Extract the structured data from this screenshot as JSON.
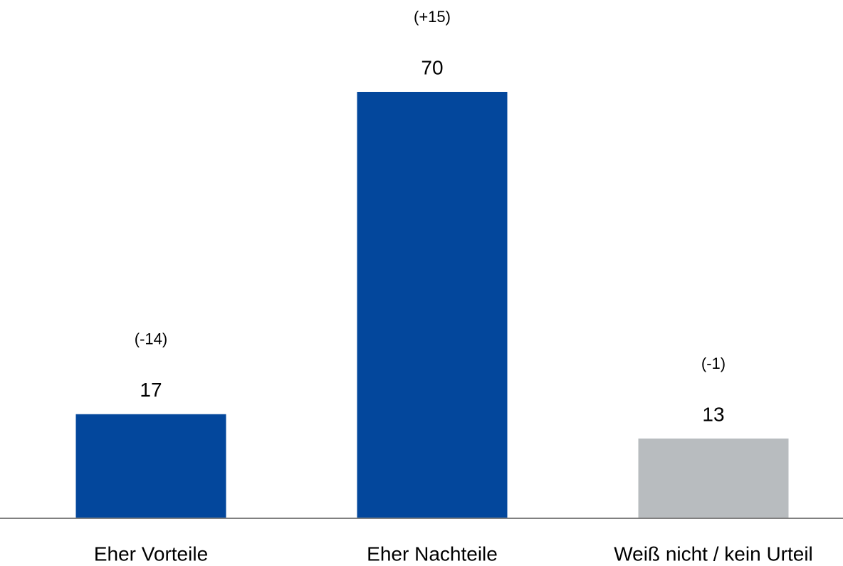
{
  "chart_data": {
    "type": "bar",
    "categories": [
      "Eher Vorteile",
      "Eher Nachteile",
      "Weiß nicht / kein Urteil"
    ],
    "values": [
      17,
      70,
      13
    ],
    "annotations": [
      "(-14)",
      "(+15)",
      "(-1)"
    ],
    "colors": [
      "#03479c",
      "#03479c",
      "#b8bcbf"
    ]
  }
}
